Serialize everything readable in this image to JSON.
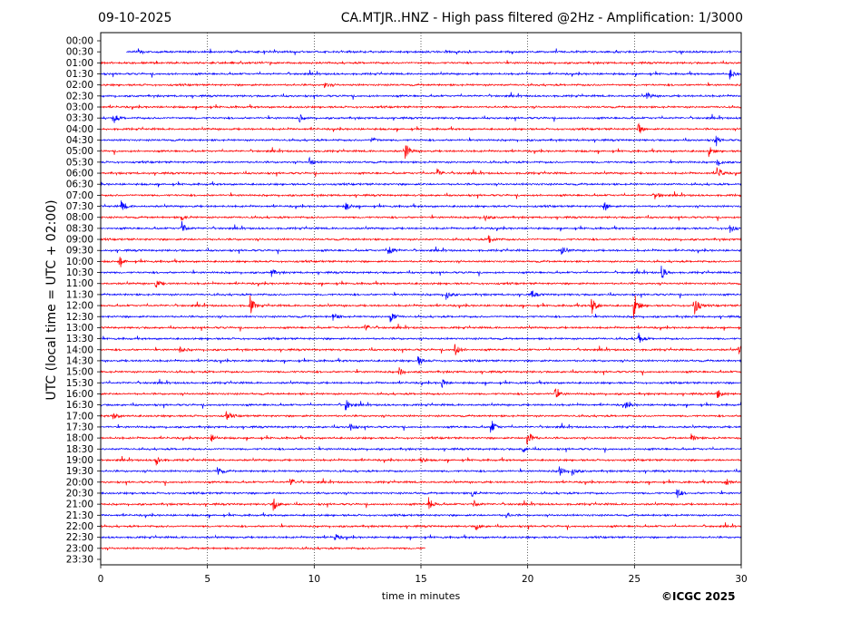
{
  "header": {
    "date": "09-10-2025",
    "title": "CA.MTJR..HNZ - High pass filtered @2Hz - Amplification: 1/3000"
  },
  "footer": {
    "copyright": "©ICGC 2025"
  },
  "colors": {
    "odd_trace": "#ff0000",
    "even_trace": "#0000ff",
    "grid": "#000000"
  },
  "chart_data": {
    "type": "line",
    "title": "CA.MTJR..HNZ - High pass filtered @2Hz - Amplification: 1/3000",
    "xlabel": "time in minutes",
    "ylabel": "UTC (local time = UTC + 02:00)",
    "xlim": [
      0,
      30
    ],
    "x_ticks": [
      0,
      5,
      10,
      15,
      20,
      25,
      30
    ],
    "grid": "vertical dotted lines at 5-minute ticks",
    "rows": [
      "00:00",
      "00:30",
      "01:00",
      "01:30",
      "02:00",
      "02:30",
      "03:00",
      "03:30",
      "04:00",
      "04:30",
      "05:00",
      "05:30",
      "06:00",
      "06:30",
      "07:00",
      "07:30",
      "08:00",
      "08:30",
      "09:00",
      "09:30",
      "10:00",
      "10:30",
      "11:00",
      "11:30",
      "12:00",
      "12:30",
      "13:00",
      "13:30",
      "14:00",
      "14:30",
      "15:00",
      "15:30",
      "16:00",
      "16:30",
      "17:00",
      "17:30",
      "18:00",
      "18:30",
      "19:00",
      "19:30",
      "20:00",
      "20:30",
      "21:00",
      "21:30",
      "22:00",
      "22:30",
      "23:00",
      "23:30"
    ],
    "row_colors": [
      "blue",
      "blue",
      "red",
      "blue",
      "red",
      "blue",
      "red",
      "blue",
      "red",
      "blue",
      "red",
      "blue",
      "red",
      "blue",
      "red",
      "blue",
      "red",
      "blue",
      "red",
      "blue",
      "red",
      "blue",
      "red",
      "blue",
      "red",
      "blue",
      "red",
      "blue",
      "red",
      "blue",
      "red",
      "blue",
      "red",
      "blue",
      "red",
      "blue",
      "red",
      "blue",
      "red",
      "blue",
      "red",
      "blue",
      "red",
      "blue",
      "red",
      "blue",
      "red",
      "blue"
    ],
    "trace_extent_minutes": [
      [
        0,
        0
      ],
      [
        1.2,
        30
      ],
      [
        0,
        30
      ],
      [
        0,
        30
      ],
      [
        0,
        30
      ],
      [
        0,
        30
      ],
      [
        0,
        30
      ],
      [
        0,
        30
      ],
      [
        0,
        30
      ],
      [
        0,
        30
      ],
      [
        0,
        30
      ],
      [
        0,
        30
      ],
      [
        0,
        30
      ],
      [
        0,
        30
      ],
      [
        0,
        30
      ],
      [
        0,
        30
      ],
      [
        0,
        30
      ],
      [
        0,
        30
      ],
      [
        0,
        30
      ],
      [
        0,
        30
      ],
      [
        0,
        30
      ],
      [
        0,
        30
      ],
      [
        0,
        30
      ],
      [
        0,
        30
      ],
      [
        0,
        30
      ],
      [
        0,
        30
      ],
      [
        0,
        30
      ],
      [
        0,
        30
      ],
      [
        0,
        30
      ],
      [
        0,
        30
      ],
      [
        0,
        30
      ],
      [
        0,
        30
      ],
      [
        0,
        30
      ],
      [
        0,
        30
      ],
      [
        0,
        30
      ],
      [
        0,
        30
      ],
      [
        0,
        30
      ],
      [
        0,
        30
      ],
      [
        0,
        30
      ],
      [
        0,
        30
      ],
      [
        0,
        30
      ],
      [
        0,
        30
      ],
      [
        0,
        30
      ],
      [
        0,
        30
      ],
      [
        0,
        30
      ],
      [
        0,
        30
      ],
      [
        0,
        15.2
      ],
      [
        0,
        0
      ]
    ],
    "events": [
      {
        "row": 1,
        "t": 1.8,
        "amp": 0.3
      },
      {
        "row": 3,
        "t": 29.5,
        "amp": 0.6
      },
      {
        "row": 4,
        "t": 10.5,
        "amp": 0.3
      },
      {
        "row": 5,
        "t": 25.6,
        "amp": 0.4
      },
      {
        "row": 7,
        "t": 0.6,
        "amp": 0.7
      },
      {
        "row": 7,
        "t": 9.3,
        "amp": 0.5
      },
      {
        "row": 8,
        "t": 25.2,
        "amp": 0.6
      },
      {
        "row": 9,
        "t": 12.7,
        "amp": 0.4
      },
      {
        "row": 9,
        "t": 28.8,
        "amp": 0.5
      },
      {
        "row": 10,
        "t": 14.3,
        "amp": 0.9
      },
      {
        "row": 10,
        "t": 28.5,
        "amp": 0.6
      },
      {
        "row": 11,
        "t": 9.8,
        "amp": 0.5
      },
      {
        "row": 11,
        "t": 28.9,
        "amp": 0.6
      },
      {
        "row": 12,
        "t": 15.8,
        "amp": 0.5
      },
      {
        "row": 12,
        "t": 28.9,
        "amp": 0.8
      },
      {
        "row": 14,
        "t": 26.0,
        "amp": 0.5
      },
      {
        "row": 15,
        "t": 1.0,
        "amp": 0.7
      },
      {
        "row": 15,
        "t": 11.5,
        "amp": 0.5
      },
      {
        "row": 15,
        "t": 23.6,
        "amp": 0.6
      },
      {
        "row": 16,
        "t": 3.8,
        "amp": 0.4
      },
      {
        "row": 16,
        "t": 18.0,
        "amp": 0.4
      },
      {
        "row": 17,
        "t": 3.8,
        "amp": 0.9
      },
      {
        "row": 17,
        "t": 29.5,
        "amp": 0.5
      },
      {
        "row": 18,
        "t": 18.2,
        "amp": 0.6
      },
      {
        "row": 19,
        "t": 13.5,
        "amp": 0.8
      },
      {
        "row": 19,
        "t": 21.6,
        "amp": 0.6
      },
      {
        "row": 20,
        "t": 0.9,
        "amp": 0.5
      },
      {
        "row": 21,
        "t": 26.3,
        "amp": 0.8
      },
      {
        "row": 21,
        "t": 8.0,
        "amp": 0.5
      },
      {
        "row": 22,
        "t": 2.6,
        "amp": 0.5
      },
      {
        "row": 23,
        "t": 16.2,
        "amp": 0.6
      },
      {
        "row": 23,
        "t": 20.2,
        "amp": 0.5
      },
      {
        "row": 24,
        "t": 7.0,
        "amp": 1.2
      },
      {
        "row": 24,
        "t": 23.0,
        "amp": 1.2
      },
      {
        "row": 24,
        "t": 25.0,
        "amp": 1.5
      },
      {
        "row": 24,
        "t": 27.8,
        "amp": 1.3
      },
      {
        "row": 25,
        "t": 13.6,
        "amp": 0.8
      },
      {
        "row": 25,
        "t": 10.9,
        "amp": 0.5
      },
      {
        "row": 26,
        "t": 12.4,
        "amp": 0.5
      },
      {
        "row": 27,
        "t": 25.2,
        "amp": 0.7
      },
      {
        "row": 28,
        "t": 16.6,
        "amp": 0.8
      },
      {
        "row": 28,
        "t": 29.9,
        "amp": 0.6
      },
      {
        "row": 28,
        "t": 3.7,
        "amp": 0.5
      },
      {
        "row": 29,
        "t": 14.9,
        "amp": 0.6
      },
      {
        "row": 30,
        "t": 14.0,
        "amp": 0.5
      },
      {
        "row": 31,
        "t": 16.0,
        "amp": 0.5
      },
      {
        "row": 32,
        "t": 21.3,
        "amp": 0.6
      },
      {
        "row": 32,
        "t": 28.9,
        "amp": 0.6
      },
      {
        "row": 33,
        "t": 11.5,
        "amp": 0.7
      },
      {
        "row": 33,
        "t": 24.6,
        "amp": 0.5
      },
      {
        "row": 34,
        "t": 5.9,
        "amp": 0.6
      },
      {
        "row": 34,
        "t": 0.6,
        "amp": 0.4
      },
      {
        "row": 35,
        "t": 18.3,
        "amp": 0.9
      },
      {
        "row": 35,
        "t": 11.7,
        "amp": 0.5
      },
      {
        "row": 36,
        "t": 20.0,
        "amp": 1.1
      },
      {
        "row": 36,
        "t": 5.2,
        "amp": 0.5
      },
      {
        "row": 36,
        "t": 27.7,
        "amp": 0.5
      },
      {
        "row": 37,
        "t": 19.8,
        "amp": 0.4
      },
      {
        "row": 38,
        "t": 2.6,
        "amp": 0.7
      },
      {
        "row": 38,
        "t": 15.0,
        "amp": 0.4
      },
      {
        "row": 39,
        "t": 5.5,
        "amp": 0.6
      },
      {
        "row": 39,
        "t": 21.5,
        "amp": 0.6
      },
      {
        "row": 39,
        "t": 22.1,
        "amp": 0.5
      },
      {
        "row": 40,
        "t": 8.9,
        "amp": 0.6
      },
      {
        "row": 40,
        "t": 29.3,
        "amp": 0.5
      },
      {
        "row": 41,
        "t": 27.0,
        "amp": 0.7
      },
      {
        "row": 41,
        "t": 17.4,
        "amp": 0.5
      },
      {
        "row": 42,
        "t": 8.1,
        "amp": 0.8
      },
      {
        "row": 42,
        "t": 15.4,
        "amp": 0.8
      },
      {
        "row": 42,
        "t": 17.5,
        "amp": 0.5
      },
      {
        "row": 43,
        "t": 19.0,
        "amp": 0.3
      },
      {
        "row": 44,
        "t": 17.6,
        "amp": 0.4
      },
      {
        "row": 45,
        "t": 11.0,
        "amp": 0.4
      }
    ]
  }
}
